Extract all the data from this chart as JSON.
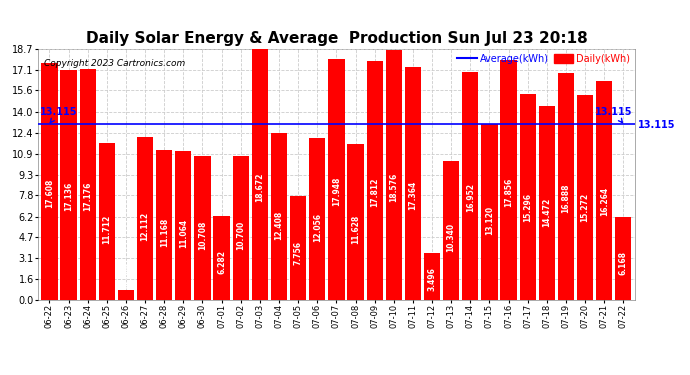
{
  "title": "Daily Solar Energy & Average  Production Sun Jul 23 20:18",
  "copyright": "Copyright 2023 Cartronics.com",
  "legend_average": "Average(kWh)",
  "legend_daily": "Daily(kWh)",
  "average_line": 13.115,
  "average_label": "13.115",
  "categories": [
    "06-22",
    "06-23",
    "06-24",
    "06-25",
    "06-26",
    "06-27",
    "06-28",
    "06-29",
    "06-30",
    "07-01",
    "07-02",
    "07-03",
    "07-04",
    "07-05",
    "07-06",
    "07-07",
    "07-08",
    "07-09",
    "07-10",
    "07-11",
    "07-12",
    "07-13",
    "07-14",
    "07-15",
    "07-16",
    "07-17",
    "07-18",
    "07-19",
    "07-20",
    "07-21",
    "07-22"
  ],
  "values": [
    17.608,
    17.136,
    17.176,
    11.712,
    0.728,
    12.112,
    11.168,
    11.064,
    10.708,
    6.282,
    10.7,
    18.672,
    12.408,
    7.756,
    12.056,
    17.948,
    11.628,
    17.812,
    18.576,
    17.364,
    3.496,
    10.34,
    16.952,
    13.12,
    17.856,
    15.296,
    14.472,
    16.888,
    15.272,
    16.264,
    6.168
  ],
  "bar_color": "#ff0000",
  "avg_line_color": "#0000ff",
  "background_color": "#ffffff",
  "grid_color": "#cccccc",
  "ylim": [
    0.0,
    18.7
  ],
  "yticks": [
    0.0,
    1.6,
    3.1,
    4.7,
    6.2,
    7.8,
    9.3,
    10.9,
    12.4,
    14.0,
    15.6,
    17.1,
    18.7
  ],
  "ytick_labels": [
    "0.0",
    "1.6",
    "3.1",
    "4.7",
    "6.2",
    "7.8",
    "9.3",
    "10.9",
    "12.4",
    "14.0",
    "15.6",
    "17.1",
    "18.7"
  ],
  "title_fontsize": 11,
  "bar_value_fontsize": 5.5,
  "xtick_fontsize": 6,
  "ytick_fontsize": 7
}
